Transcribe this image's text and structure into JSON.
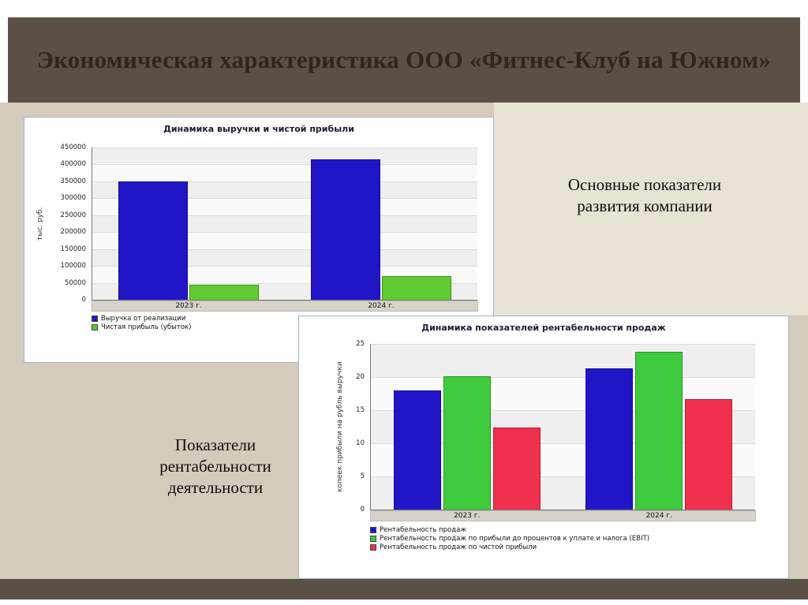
{
  "slide": {
    "title": "Экономическая характеристика ООО «Фитнес-Клуб на Южном»"
  },
  "captions": {
    "right": "Основные показатели развития компании",
    "left": "Показатели рентабельности деятельности"
  },
  "colors": {
    "title_bar": "#5b5048",
    "background": "#d3cbbc",
    "panel_light": "#e9e3d6",
    "chart_border": "#9fb4d4"
  },
  "chart_data": [
    {
      "type": "bar",
      "title": "Динамика выручки и чистой прибыли",
      "ylabel": "тыс. руб.",
      "xlabel": "",
      "categories": [
        "2023 г.",
        "2024 г."
      ],
      "series": [
        {
          "name": "Выручка от реализации",
          "color": "#2016c8",
          "values": [
            350000,
            415000
          ]
        },
        {
          "name": "Чистая прибыль (убыток)",
          "color": "#5ecc2e",
          "values": [
            45000,
            70000
          ]
        }
      ],
      "ylim": [
        0,
        450000
      ],
      "yticks": [
        0,
        50000,
        100000,
        150000,
        200000,
        250000,
        300000,
        350000,
        400000,
        450000
      ],
      "grid": true,
      "legend_position": "bottom-left"
    },
    {
      "type": "bar",
      "title": "Динамика показателей рентабельности продаж",
      "ylabel": "копеек прибыли на рубль выручки",
      "xlabel": "",
      "categories": [
        "2023 г.",
        "2024 г."
      ],
      "series": [
        {
          "name": "Рентабельность продаж",
          "color": "#2016c8",
          "values": [
            18,
            21.3
          ]
        },
        {
          "name": "Рентабельность продаж по прибыли до процентов к уплате и налога (EBIT)",
          "color": "#3ecc3e",
          "values": [
            20.1,
            23.8
          ]
        },
        {
          "name": "Рентабельность продаж по чистой прибыли",
          "color": "#f0304e",
          "values": [
            12.4,
            16.7
          ]
        }
      ],
      "ylim": [
        0,
        25
      ],
      "yticks": [
        0,
        5,
        10,
        15,
        20,
        25
      ],
      "grid": true,
      "legend_position": "bottom-left"
    }
  ]
}
